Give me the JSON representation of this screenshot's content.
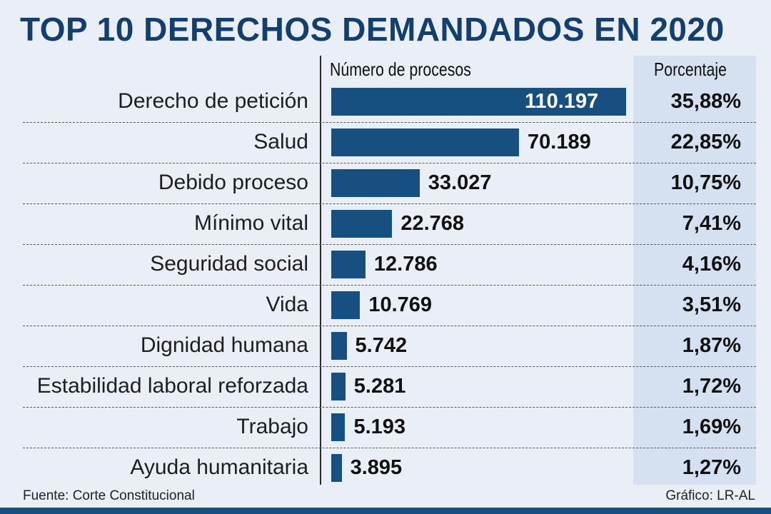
{
  "header": {
    "title": "TOP 10 DERECHOS DEMANDADOS EN 2020",
    "col_numero": "Número de procesos",
    "col_porcentaje": "Porcentaje"
  },
  "chart_data": {
    "type": "bar",
    "orientation": "horizontal",
    "title": "TOP 10 DERECHOS DEMANDADOS EN 2020",
    "categories": [
      "Derecho de petición",
      "Salud",
      "Debido proceso",
      "Mínimo vital",
      "Seguridad social",
      "Vida",
      "Dignidad humana",
      "Estabilidad laboral reforzada",
      "Trabajo",
      "Ayuda humanitaria"
    ],
    "values": [
      110197,
      70189,
      33027,
      22768,
      12786,
      10769,
      5742,
      5281,
      5193,
      3895
    ],
    "value_labels": [
      "110.197",
      "70.189",
      "33.027",
      "22.768",
      "12.786",
      "10.769",
      "5.742",
      "5.281",
      "5.193",
      "3.895"
    ],
    "percent_labels": [
      "35,88%",
      "22,85%",
      "10,75%",
      "7,41%",
      "4,16%",
      "3,51%",
      "1,87%",
      "1,72%",
      "1,69%",
      "1,27%"
    ],
    "xlabel": "Número de procesos",
    "ylabel": "",
    "xlim": [
      0,
      110197
    ],
    "bar_color": "#174f80",
    "grid": false
  },
  "footer": {
    "source": "Fuente: Corte Constitucional",
    "credit": "Gráfico: LR-AL"
  }
}
